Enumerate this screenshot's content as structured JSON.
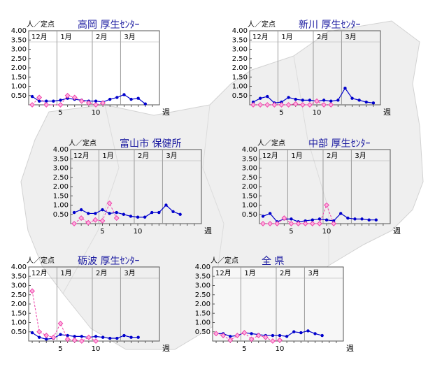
{
  "colors": {
    "series_current": "#0000cc",
    "series_previous": "#ee44aa",
    "grid": "#999999",
    "map_fill": "#efefef",
    "map_border": "#d0d0d0",
    "title": "#1a1aa0"
  },
  "common": {
    "unit_label": "人／定点",
    "week_label": "週",
    "y_tick_labels": [
      "4.00",
      "3.50",
      "3.00",
      "2.50",
      "2.00",
      "1.50",
      "1.00",
      "0.50"
    ],
    "month_labels": [
      "12月",
      "1月",
      "2月",
      "3月"
    ],
    "x_tick_labels": [
      "5",
      "10"
    ]
  },
  "chart_data": [
    {
      "type": "line",
      "title": "高岡 厚生ｾﾝﾀｰ",
      "ylim": [
        0,
        4
      ],
      "x": [
        1,
        2,
        3,
        4,
        5,
        6,
        7,
        8,
        9,
        10,
        11,
        12,
        13,
        14,
        15,
        16,
        17,
        18
      ],
      "series": [
        {
          "values": [
            0.45,
            0.2,
            0.2,
            0.2,
            0.25,
            0.35,
            0.3,
            0.25,
            0.2,
            0.2,
            0.15,
            0.3,
            0.4,
            0.55,
            0.3,
            0.35,
            0.05,
            null
          ]
        },
        {
          "values": [
            0.0,
            0.4,
            0.0,
            null,
            0.0,
            0.5,
            0.4,
            0.2,
            0.1,
            0.0,
            0.1,
            null,
            null,
            null,
            null,
            null,
            null,
            null
          ]
        }
      ]
    },
    {
      "type": "line",
      "title": "新川 厚生ｾﾝﾀｰ",
      "ylim": [
        0,
        4
      ],
      "x": [
        1,
        2,
        3,
        4,
        5,
        6,
        7,
        8,
        9,
        10,
        11,
        12,
        13,
        14,
        15,
        16,
        17,
        18
      ],
      "series": [
        {
          "values": [
            0.15,
            0.35,
            0.45,
            0.1,
            0.15,
            0.4,
            0.3,
            0.25,
            0.25,
            0.2,
            0.25,
            0.2,
            0.25,
            0.9,
            0.35,
            0.25,
            0.15,
            0.1
          ]
        },
        {
          "values": [
            0.0,
            0.0,
            0.0,
            0.0,
            0.0,
            0.0,
            0.05,
            0.0,
            0.0,
            0.2,
            0.0,
            0.0,
            null,
            null,
            null,
            null,
            null,
            null
          ]
        }
      ]
    },
    {
      "type": "line",
      "title": "富山市 保健所",
      "ylim": [
        0,
        4
      ],
      "x": [
        1,
        2,
        3,
        4,
        5,
        6,
        7,
        8,
        9,
        10,
        11,
        12,
        13,
        14,
        15,
        16,
        17,
        18
      ],
      "series": [
        {
          "values": [
            0.6,
            0.75,
            0.55,
            0.55,
            0.75,
            0.55,
            0.6,
            0.5,
            0.4,
            0.35,
            0.35,
            0.6,
            0.6,
            1.0,
            0.65,
            0.5,
            null,
            null
          ]
        },
        {
          "values": [
            0.0,
            0.3,
            0.05,
            0.2,
            0.15,
            1.1,
            0.3,
            null,
            null,
            null,
            null,
            null,
            null,
            null,
            null,
            null,
            null,
            null
          ]
        }
      ]
    },
    {
      "type": "line",
      "title": "中部 厚生ｾﾝﾀｰ",
      "ylim": [
        0,
        4
      ],
      "x": [
        1,
        2,
        3,
        4,
        5,
        6,
        7,
        8,
        9,
        10,
        11,
        12,
        13,
        14,
        15,
        16,
        17,
        18
      ],
      "series": [
        {
          "values": [
            0.4,
            0.55,
            0.1,
            0.25,
            0.25,
            0.1,
            0.15,
            0.2,
            0.25,
            0.2,
            0.15,
            0.55,
            0.3,
            0.25,
            0.25,
            0.2,
            0.2,
            null
          ]
        },
        {
          "values": [
            0.0,
            0.0,
            0.0,
            0.3,
            0.0,
            0.0,
            0.0,
            0.0,
            0.0,
            1.0,
            0.0,
            null,
            null,
            null,
            null,
            null,
            null,
            null
          ]
        }
      ]
    },
    {
      "type": "line",
      "title": "砺波 厚生ｾﾝﾀｰ",
      "ylim": [
        0,
        4
      ],
      "x": [
        1,
        2,
        3,
        4,
        5,
        6,
        7,
        8,
        9,
        10,
        11,
        12,
        13,
        14,
        15,
        16,
        17,
        18
      ],
      "series": [
        {
          "values": [
            0.45,
            0.2,
            0.1,
            0.15,
            0.35,
            0.3,
            0.25,
            0.25,
            0.2,
            0.25,
            0.2,
            0.15,
            0.15,
            0.3,
            0.2,
            0.2,
            null,
            null
          ]
        },
        {
          "values": [
            2.7,
            0.5,
            0.3,
            0.2,
            0.95,
            0.1,
            0.05,
            0.0,
            0.2,
            0.0,
            null,
            null,
            null,
            null,
            null,
            null,
            null,
            null
          ]
        }
      ]
    },
    {
      "type": "line",
      "title": "全 県",
      "ylim": [
        0,
        4
      ],
      "x": [
        1,
        2,
        3,
        4,
        5,
        6,
        7,
        8,
        9,
        10,
        11,
        12,
        13,
        14,
        15,
        16,
        17,
        18
      ],
      "series": [
        {
          "values": [
            0.4,
            0.4,
            0.25,
            0.3,
            0.45,
            0.4,
            0.35,
            0.3,
            0.3,
            0.3,
            0.25,
            0.5,
            0.45,
            0.55,
            0.4,
            0.3,
            null,
            null
          ]
        },
        {
          "values": [
            0.4,
            0.3,
            0.05,
            0.3,
            0.45,
            0.1,
            0.3,
            0.2,
            0.0,
            0.05,
            null,
            null,
            null,
            null,
            null,
            null,
            null,
            null
          ]
        }
      ]
    }
  ]
}
